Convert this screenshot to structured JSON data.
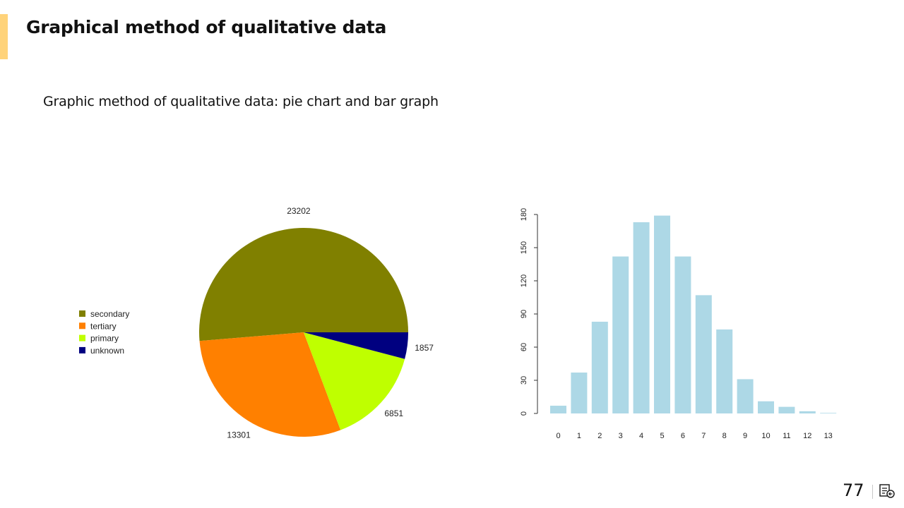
{
  "slide": {
    "title": "Graphical method of qualitative data",
    "subtitle": "Graphic method of qualitative data: pie chart and bar graph",
    "page_number": "77",
    "accent_color": "#ffd37a",
    "footer_icon": "notes-icon"
  },
  "chart_data": [
    {
      "type": "pie",
      "title": "",
      "slices": [
        {
          "label": "secondary",
          "value": 23202,
          "value_label": "23202",
          "color": "#808000"
        },
        {
          "label": "tertiary",
          "value": 13301,
          "value_label": "13301",
          "color": "#ff8000"
        },
        {
          "label": "primary",
          "value": 6851,
          "value_label": "6851",
          "color": "#bfff00"
        },
        {
          "label": "unknown",
          "value": 1857,
          "value_label": "1857",
          "color": "#000080"
        }
      ],
      "legend": [
        "secondary",
        "tertiary",
        "primary",
        "unknown"
      ],
      "legend_position": "left"
    },
    {
      "type": "bar",
      "title": "",
      "xlabel": "",
      "ylabel": "",
      "categories": [
        "0",
        "1",
        "2",
        "3",
        "4",
        "5",
        "6",
        "7",
        "8",
        "9",
        "10",
        "11",
        "12",
        "13"
      ],
      "values": [
        7,
        37,
        83,
        142,
        173,
        179,
        142,
        107,
        76,
        31,
        11,
        6,
        2,
        0.5
      ],
      "ylim": [
        0,
        180
      ],
      "yticks": [
        "0",
        "30",
        "60",
        "90",
        "120",
        "150",
        "180"
      ],
      "color": "#add8e6",
      "grid": false
    }
  ]
}
